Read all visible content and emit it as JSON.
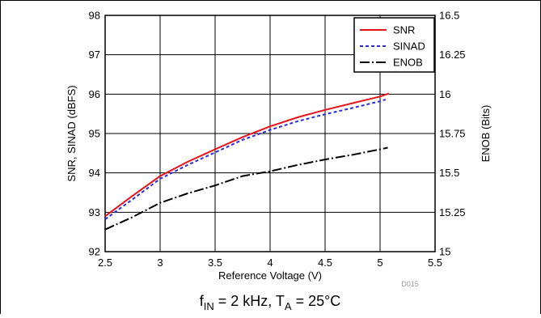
{
  "chart_data": {
    "type": "line",
    "xlabel": "Reference Voltage (V)",
    "ylabel": "SNR, SINAD (dBFS)",
    "y2label": "ENOB (Bits)",
    "xlim": [
      2.5,
      5.5
    ],
    "ylim": [
      92,
      98
    ],
    "y2lim": [
      15,
      16.5
    ],
    "x_ticks": [
      "2.5",
      "3",
      "3.5",
      "4",
      "4.5",
      "5",
      "5.5"
    ],
    "y_ticks": [
      "92",
      "93",
      "94",
      "95",
      "96",
      "97",
      "98"
    ],
    "y2_ticks": [
      "15",
      "15.25",
      "15.5",
      "15.75",
      "16",
      "16.25",
      "16.5"
    ],
    "grid": true,
    "legend_position": "top-right",
    "figure_id": "D015",
    "caption": {
      "f_main": "f",
      "f_sub": "IN",
      "f_rest": " = 2 kHz, T",
      "t_sub": "A",
      "t_rest": " = 25°C"
    },
    "series": [
      {
        "name": "SNR",
        "axis": "left",
        "color": "#e8121a",
        "dash": "solid",
        "x": [
          2.5,
          2.75,
          3.0,
          3.25,
          3.5,
          3.75,
          4.0,
          4.25,
          4.5,
          4.75,
          5.0,
          5.08
        ],
        "y": [
          92.9,
          93.42,
          93.92,
          94.28,
          94.6,
          94.91,
          95.18,
          95.41,
          95.6,
          95.77,
          95.94,
          96.02
        ]
      },
      {
        "name": "SINAD",
        "axis": "left",
        "color": "#2b2bd9",
        "dash": "dashed",
        "x": [
          2.5,
          2.75,
          3.0,
          3.25,
          3.5,
          3.75,
          4.0,
          4.25,
          4.5,
          4.75,
          5.0,
          5.05
        ],
        "y": [
          92.82,
          93.33,
          93.85,
          94.2,
          94.52,
          94.84,
          95.09,
          95.31,
          95.49,
          95.65,
          95.82,
          95.86
        ]
      },
      {
        "name": "ENOB",
        "axis": "right",
        "color": "#000000",
        "dash": "dashdot",
        "x": [
          2.5,
          2.75,
          3.0,
          3.25,
          3.5,
          3.75,
          4.0,
          4.25,
          4.5,
          4.75,
          5.0,
          5.07
        ],
        "y": [
          15.14,
          15.22,
          15.31,
          15.37,
          15.42,
          15.48,
          15.51,
          15.55,
          15.585,
          15.615,
          15.65,
          15.66
        ]
      }
    ]
  }
}
